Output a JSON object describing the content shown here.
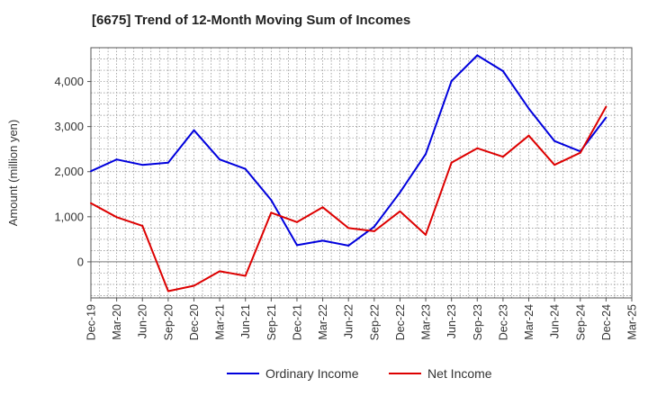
{
  "chart_data": {
    "type": "line",
    "title": "[6675]  Trend of 12-Month Moving Sum of Incomes",
    "xlabel": "",
    "ylabel": "Amount (million yen)",
    "categories": [
      "Dec-19",
      "Mar-20",
      "Jun-20",
      "Sep-20",
      "Dec-20",
      "Mar-21",
      "Jun-21",
      "Sep-21",
      "Dec-21",
      "Mar-22",
      "Jun-22",
      "Sep-22",
      "Dec-22",
      "Mar-23",
      "Jun-23",
      "Sep-23",
      "Dec-23",
      "Mar-24",
      "Jun-24",
      "Sep-24",
      "Dec-24",
      "Mar-25"
    ],
    "yticks": [
      0,
      1000,
      2000,
      3000,
      4000
    ],
    "ytick_labels": [
      "0",
      "1,000",
      "2,000",
      "3,000",
      "4,000"
    ],
    "ylim": [
      -800,
      4750
    ],
    "grid": true,
    "legend_position": "bottom-center",
    "series": [
      {
        "name": "Ordinary Income",
        "color": "#0000dd",
        "values": [
          2010,
          2270,
          2150,
          2200,
          2920,
          2270,
          2060,
          1370,
          370,
          470,
          360,
          780,
          1540,
          2390,
          4010,
          4580,
          4230,
          3400,
          2680,
          2450,
          3200,
          null
        ]
      },
      {
        "name": "Net Income",
        "color": "#dd0000",
        "values": [
          1300,
          990,
          800,
          -650,
          -530,
          -210,
          -310,
          1090,
          880,
          1210,
          750,
          680,
          1120,
          600,
          2200,
          2520,
          2330,
          2800,
          2150,
          2420,
          3440,
          null
        ]
      }
    ]
  }
}
